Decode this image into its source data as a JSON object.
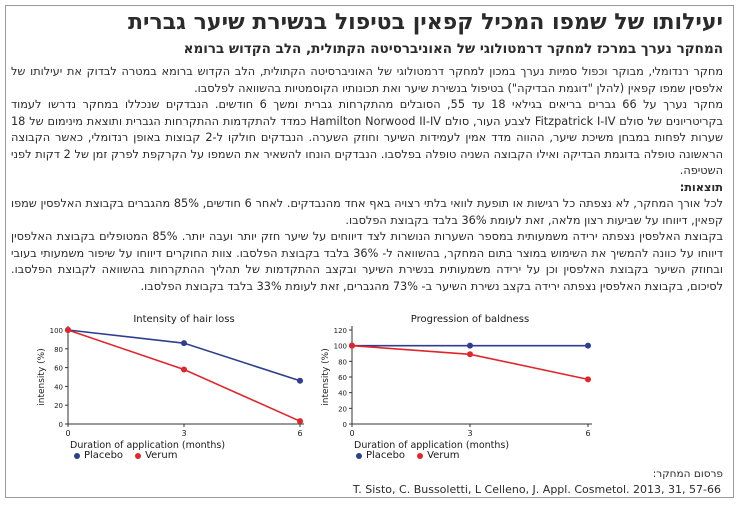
{
  "title": "יעילותו של שמפו המכיל קפאין בטיפול בנשירת שיער גברית",
  "subtitle": "המחקר נערך במרכז למחקר דרמטולוגי של האוניברסיטה הקתולית, הלב הקדוש ברומא",
  "paragraphs": [
    "מחקר רנדומלי, מבוקר וכפול סמיות נערך במכון למחקר דרמטולוגי של האוניברסיטה הקתולית, הלב הקדוש ברומא במטרה לבדוק את יעילותו של אלפסין שמפו קפאין (להלן \"דוגמת הבדיקה\") בטיפול בנשירת שיער ואת תכונותיו הקוסמטיות בהשוואה לפלסבו.",
    "מחקר נערך על 66 גברים בריאים בגילאי 18 עד 55, הסובלים מהתקרחות גברית ומשך 6 חודשים. הנבדקים שנכללו במחקר נדרשו לעמוד בקריטריונים של סולם Fitzpatrick I-IV לצבע העור, סולם Hamilton Norwood II-IV כמדד להתקדמות ההתקרחות הגברית ותוצאת מינימום של 18 שערות לפחות במבחן משיכת שיער, ההווה מדד אמין לעמידות השיער וחוזק השערה. הנבדקים חולקו ל-2 קבוצות באופן רנדומלי, כאשר הקבוצה הראשונה טופלה בדוגמת הבדיקה ואילו הקבוצה השניה טופלה בפלסבו. הנבדקים הונחו להשאיר את השמפו על הקרקפת לפרק זמן של 2 דקות לפני השטיפה."
  ],
  "results_heading": "תוצאות:",
  "results_paragraphs": [
    "לכל אורך המחקר, לא נצפתה כל רגישות או תופעת לוואי בלתי רצויה באף אחד מהנבדקים. לאחר 6 חודשים, 85% מהגברים בקבוצת האלפסין שמפו קפאין, דיווחו על שביעות רצון מלאה, זאת לעומת 36% בלבד בקבוצת הפלסבו.",
    "בקבוצת האלפסין נצפתה ירידה משמעותית במספר השערות הנושרות לצד דיווחים על שיער חזק יותר ועבה יותר. 85% המטופלים בקבוצת האלפסין דיווחו על כוונה להמשיך את השימוש במוצר בתום המחקר, בהשוואה ל- 36% בלבד בקבוצת הפלסבו. צוות החוקרים דיווחו על שיפור משמעותי בעובי ובחוזק השיער בקבוצת האלפסין וכן על ירידה משמעותית בנשירת השיער ובקצב ההתקדמות של תהליך ההתקרחות בהשוואה לקבוצת הפלסבו. לסיכום, בקבוצת האלפסין נצפתה ירידה בקצב נשירת השיער ב- 73% מהגברים, זאת לעומת 33% בלבד בקבוצת הפלסבו."
  ],
  "chart_data": [
    {
      "type": "line",
      "title": "Intensity of hair loss",
      "xlabel": "Duration of application (months)",
      "ylabel": "intensity (%)",
      "x": [
        0,
        3,
        6
      ],
      "xticks": [
        "0",
        "3",
        "6"
      ],
      "ylim": [
        0,
        100
      ],
      "yticks": [
        "0",
        "20",
        "40",
        "60",
        "80",
        "100"
      ],
      "series": [
        {
          "name": "Placebo",
          "color": "#2e3f8f",
          "values": [
            100,
            86,
            46
          ]
        },
        {
          "name": "Verum",
          "color": "#e0262b",
          "values": [
            100,
            58,
            3
          ]
        }
      ]
    },
    {
      "type": "line",
      "title": "Progression of baldness",
      "xlabel": "Duration of application (months)",
      "ylabel": "intensity (%)",
      "x": [
        0,
        3,
        6
      ],
      "xticks": [
        "0",
        "3",
        "6"
      ],
      "ylim": [
        0,
        120
      ],
      "yticks": [
        "0",
        "20",
        "40",
        "60",
        "80",
        "100",
        "120"
      ],
      "series": [
        {
          "name": "Placebo",
          "color": "#2e3f8f",
          "values": [
            100,
            100,
            100
          ]
        },
        {
          "name": "Verum",
          "color": "#e0262b",
          "values": [
            100,
            89,
            57
          ]
        }
      ]
    }
  ],
  "source_label": "פרסום המחקר:",
  "citation": "T. Sisto, C. Bussoletti, L Celleno, J. Appl. Cosmetol. 2013, 31, 57-66"
}
